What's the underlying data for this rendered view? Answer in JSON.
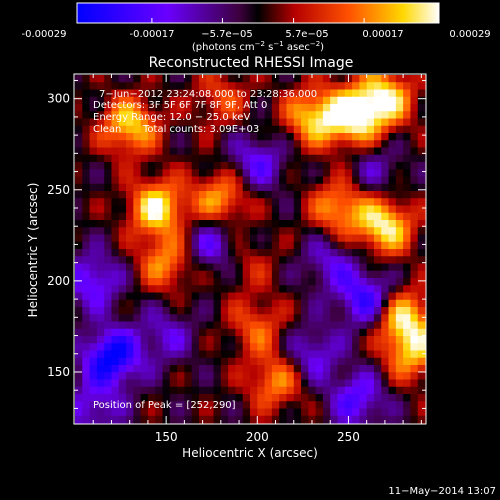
{
  "colorbar": {
    "tick_labels": [
      "-0.00029",
      "-0.00017",
      "−5.7e−05",
      "5.7e−05",
      "0.00017",
      "0.00029"
    ],
    "unit_prefix": "(photons cm",
    "unit_exp1": "−2",
    "unit_mid": " s",
    "unit_exp2": "−1",
    "unit_mid2": " asec",
    "unit_exp3": "−2",
    "unit_suffix": ")"
  },
  "image_info": {
    "time_line": "7−Jun−2012 23:24:08.000 to 23:28:36.000",
    "detectors_line": "Detectors: 3F 5F 6F 7F 8F 9F, Att 0",
    "energy_line": "Energy Range: 12.0 − 25.0 keV",
    "clean_label": "Clean",
    "counts_line": "Total counts: 3.09E+03",
    "peak_line": "Position of Peak = [252,290]"
  },
  "footer": {
    "date_stamp": "11−May−2014 13:07"
  },
  "chart_data": {
    "type": "heatmap",
    "title": "Reconstructed RHESSI Image",
    "xlabel": "Heliocentric X (arcsec)",
    "ylabel": "Heliocentric Y (arcsec)",
    "xlim": [
      100,
      292
    ],
    "ylim": [
      122,
      313
    ],
    "xticks": [
      150,
      200,
      250
    ],
    "yticks": [
      150,
      200,
      250,
      300
    ],
    "x_tick_labels": [
      "150",
      "200",
      "250"
    ],
    "y_tick_labels": [
      "150",
      "200",
      "250",
      "300"
    ],
    "clim": [
      -0.00029,
      0.00029
    ],
    "peak": [
      252,
      290
    ],
    "grid_cols": 48,
    "grid_rows": 48,
    "seed_blobs": [
      {
        "x": 130,
        "y": 285,
        "v": 0.00024
      },
      {
        "x": 145,
        "y": 240,
        "v": 0.00027
      },
      {
        "x": 180,
        "y": 245,
        "v": 0.0002
      },
      {
        "x": 230,
        "y": 290,
        "v": 0.00022
      },
      {
        "x": 252,
        "y": 290,
        "v": 0.00029
      },
      {
        "x": 270,
        "y": 300,
        "v": 0.00026
      },
      {
        "x": 270,
        "y": 230,
        "v": 0.00027
      },
      {
        "x": 245,
        "y": 240,
        "v": 0.0002
      },
      {
        "x": 150,
        "y": 210,
        "v": 0.00018
      },
      {
        "x": 200,
        "y": 175,
        "v": 0.00014
      },
      {
        "x": 280,
        "y": 180,
        "v": 0.00025
      },
      {
        "x": 285,
        "y": 160,
        "v": 0.0002
      },
      {
        "x": 210,
        "y": 145,
        "v": 0.00018
      },
      {
        "x": 180,
        "y": 300,
        "v": 0.00012
      },
      {
        "x": 120,
        "y": 158,
        "v": -0.00029
      },
      {
        "x": 110,
        "y": 200,
        "v": -0.00018
      },
      {
        "x": 175,
        "y": 220,
        "v": -0.00016
      },
      {
        "x": 200,
        "y": 265,
        "v": -0.00016
      },
      {
        "x": 240,
        "y": 210,
        "v": -0.00013
      },
      {
        "x": 260,
        "y": 190,
        "v": -0.00022
      },
      {
        "x": 255,
        "y": 135,
        "v": -0.00018
      },
      {
        "x": 150,
        "y": 170,
        "v": -0.00012
      },
      {
        "x": 265,
        "y": 260,
        "v": -0.0001
      },
      {
        "x": 110,
        "y": 130,
        "v": -0.00014
      },
      {
        "x": 230,
        "y": 160,
        "v": -0.00015
      },
      {
        "x": 195,
        "y": 210,
        "v": 8e-05
      }
    ]
  }
}
